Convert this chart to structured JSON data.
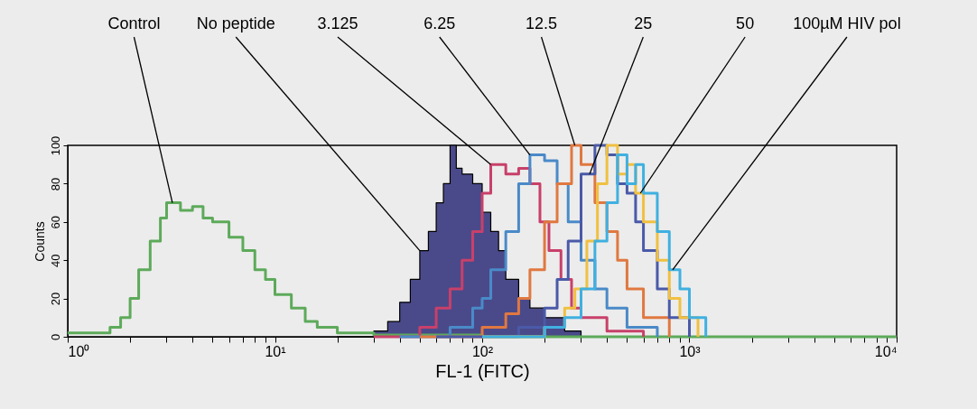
{
  "chart_data": {
    "type": "step",
    "xlabel": "FL-1 (FITC)",
    "ylabel": "Counts",
    "log": "x",
    "grid": false,
    "xlim": [
      1,
      10000
    ],
    "ylim": [
      0,
      100
    ],
    "xticks": [
      {
        "value": 1,
        "label": "10⁰"
      },
      {
        "value": 2,
        "label": null
      },
      {
        "value": 3,
        "label": null
      },
      {
        "value": 4,
        "label": null
      },
      {
        "value": 5,
        "label": null
      },
      {
        "value": 6,
        "label": null
      },
      {
        "value": 7,
        "label": null
      },
      {
        "value": 8,
        "label": null
      },
      {
        "value": 9,
        "label": null
      },
      {
        "value": 10,
        "label": "10¹"
      },
      {
        "value": 20,
        "label": null
      },
      {
        "value": 30,
        "label": null
      },
      {
        "value": 40,
        "label": null
      },
      {
        "value": 50,
        "label": null
      },
      {
        "value": 60,
        "label": null
      },
      {
        "value": 70,
        "label": null
      },
      {
        "value": 80,
        "label": null
      },
      {
        "value": 90,
        "label": null
      },
      {
        "value": 100,
        "label": "10²"
      },
      {
        "value": 200,
        "label": null
      },
      {
        "value": 300,
        "label": null
      },
      {
        "value": 400,
        "label": null
      },
      {
        "value": 500,
        "label": null
      },
      {
        "value": 600,
        "label": null
      },
      {
        "value": 700,
        "label": null
      },
      {
        "value": 800,
        "label": null
      },
      {
        "value": 900,
        "label": null
      },
      {
        "value": 1000,
        "label": "10³"
      },
      {
        "value": 2000,
        "label": null
      },
      {
        "value": 3000,
        "label": null
      },
      {
        "value": 4000,
        "label": null
      },
      {
        "value": 5000,
        "label": null
      },
      {
        "value": 6000,
        "label": null
      },
      {
        "value": 7000,
        "label": null
      },
      {
        "value": 8000,
        "label": null
      },
      {
        "value": 9000,
        "label": null
      },
      {
        "value": 10000,
        "label": "10⁴"
      }
    ],
    "yticks": [
      0,
      20,
      40,
      60,
      80,
      100
    ],
    "series": [
      {
        "type": "area",
        "color": "#4a4a8a",
        "x": [
          20,
          30,
          35,
          40,
          45,
          50,
          55,
          60,
          65,
          70,
          75,
          80,
          90,
          100,
          110,
          120,
          130,
          150,
          170,
          200,
          250,
          300
        ],
        "values": [
          0,
          3,
          8,
          18,
          30,
          45,
          55,
          70,
          80,
          100,
          88,
          85,
          80,
          65,
          55,
          45,
          30,
          20,
          15,
          10,
          3,
          0
        ]
      },
      {
        "color": "#5daa5a",
        "x": [
          1,
          1.3,
          1.6,
          1.8,
          2.0,
          2.2,
          2.5,
          2.8,
          3.0,
          3.5,
          4,
          4.5,
          5,
          6,
          7,
          8,
          9,
          10,
          12,
          14,
          16,
          20,
          30,
          100,
          1000,
          10000
        ],
        "values": [
          2,
          2,
          5,
          10,
          20,
          35,
          50,
          62,
          70,
          66,
          68,
          62,
          60,
          52,
          45,
          35,
          30,
          22,
          15,
          8,
          5,
          2,
          1,
          0,
          0,
          0
        ]
      },
      {
        "color": "#c8406a",
        "x": [
          30,
          50,
          60,
          70,
          80,
          90,
          100,
          110,
          130,
          150,
          170,
          190,
          210,
          240,
          270,
          300,
          400,
          600
        ],
        "values": [
          0,
          5,
          15,
          25,
          40,
          55,
          75,
          90,
          85,
          88,
          80,
          60,
          45,
          30,
          15,
          10,
          3,
          0
        ]
      },
      {
        "color": "#4a8ac8",
        "x": [
          40,
          70,
          90,
          100,
          110,
          130,
          150,
          170,
          200,
          230,
          260,
          300,
          350,
          400,
          500,
          700
        ],
        "values": [
          0,
          5,
          15,
          20,
          35,
          55,
          80,
          95,
          92,
          80,
          60,
          40,
          25,
          15,
          5,
          0
        ]
      },
      {
        "color": "#e07840",
        "x": [
          50,
          100,
          130,
          150,
          170,
          200,
          230,
          270,
          300,
          350,
          400,
          450,
          500,
          600,
          800
        ],
        "values": [
          0,
          5,
          12,
          20,
          35,
          60,
          80,
          100,
          90,
          70,
          55,
          40,
          25,
          10,
          0
        ]
      },
      {
        "color": "#4a5aa8",
        "x": [
          60,
          150,
          200,
          230,
          260,
          300,
          350,
          400,
          450,
          500,
          550,
          600,
          700,
          800,
          1000
        ],
        "values": [
          0,
          5,
          15,
          30,
          50,
          85,
          100,
          95,
          80,
          75,
          60,
          45,
          25,
          10,
          0
        ]
      },
      {
        "color": "#f0c040",
        "x": [
          100,
          200,
          250,
          280,
          320,
          360,
          400,
          450,
          500,
          550,
          600,
          700,
          800,
          900,
          1100
        ],
        "values": [
          0,
          5,
          15,
          25,
          50,
          80,
          100,
          85,
          90,
          75,
          60,
          40,
          20,
          10,
          0
        ]
      },
      {
        "color": "#40b0e0",
        "x": [
          100,
          200,
          250,
          300,
          350,
          400,
          450,
          500,
          550,
          600,
          700,
          800,
          900,
          1000,
          1200
        ],
        "values": [
          0,
          5,
          10,
          25,
          50,
          70,
          95,
          80,
          90,
          75,
          55,
          35,
          25,
          10,
          0
        ]
      }
    ],
    "annotations": [
      {
        "text": "Control",
        "x": 3.2,
        "y": 70
      },
      {
        "text": "No peptide",
        "x": 50,
        "y": 45
      },
      {
        "text": "3.125",
        "x": 110,
        "y": 90
      },
      {
        "text": "6.25",
        "x": 170,
        "y": 95
      },
      {
        "text": "12.5",
        "x": 280,
        "y": 100
      },
      {
        "text": "25",
        "x": 330,
        "y": 85
      },
      {
        "text": "50",
        "x": 580,
        "y": 75
      },
      {
        "text": "100µM HIV pol",
        "x": 830,
        "y": 35
      }
    ]
  }
}
